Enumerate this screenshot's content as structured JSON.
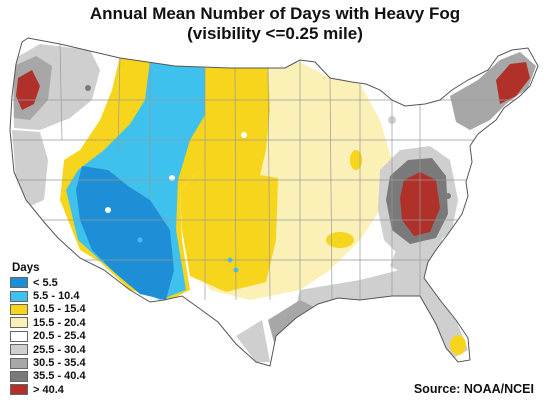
{
  "title_line1": "Annual Mean Number of Days with Heavy Fog",
  "title_line2": "(visibility <=0.25 mile)",
  "legend": {
    "title": "Days",
    "items": [
      {
        "label": "< 5.5",
        "color": "#1e8fd6"
      },
      {
        "label": "5.5 - 10.4",
        "color": "#3fc1ee"
      },
      {
        "label": "10.5 - 15.4",
        "color": "#f7d51c"
      },
      {
        "label": "15.5 - 20.4",
        "color": "#fbf0b6"
      },
      {
        "label": "20.5 - 25.4",
        "color": "#ffffff"
      },
      {
        "label": "25.5 - 30.4",
        "color": "#cfcfcf"
      },
      {
        "label": "30.5 - 35.4",
        "color": "#a7a7a7"
      },
      {
        "label": "35.5 - 40.4",
        "color": "#7a7a7a"
      },
      {
        "label": "> 40.4",
        "color": "#b0312a"
      }
    ]
  },
  "source": "Source: NOAA/NCEI"
}
